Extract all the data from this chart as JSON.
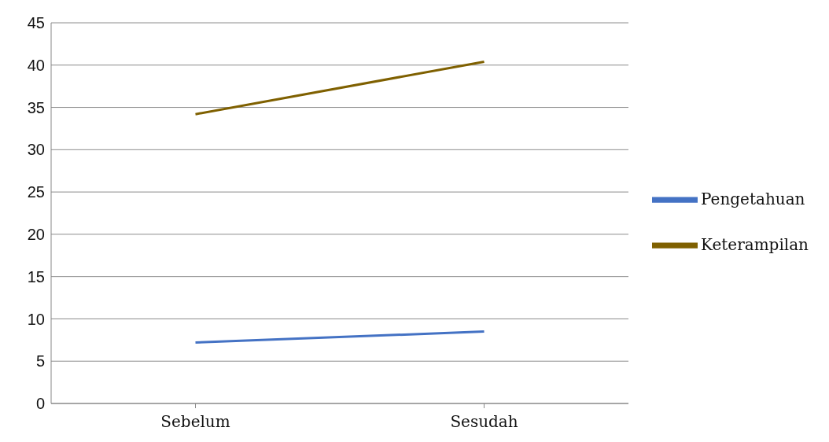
{
  "chart_data": {
    "type": "line",
    "categories": [
      "Sebelum",
      "Sesudah"
    ],
    "series": [
      {
        "name": "Pengetahuan",
        "color": "#4472c4",
        "values": [
          7.2,
          8.5
        ]
      },
      {
        "name": "Keterampilan",
        "color": "#7f6000",
        "values": [
          34.2,
          40.4
        ]
      }
    ],
    "ylim": [
      0,
      45
    ],
    "yticks": [
      0,
      5,
      10,
      15,
      20,
      25,
      30,
      35,
      40,
      45
    ],
    "grid": "y",
    "legend": "right",
    "marker": "none",
    "line_style": "solid"
  }
}
